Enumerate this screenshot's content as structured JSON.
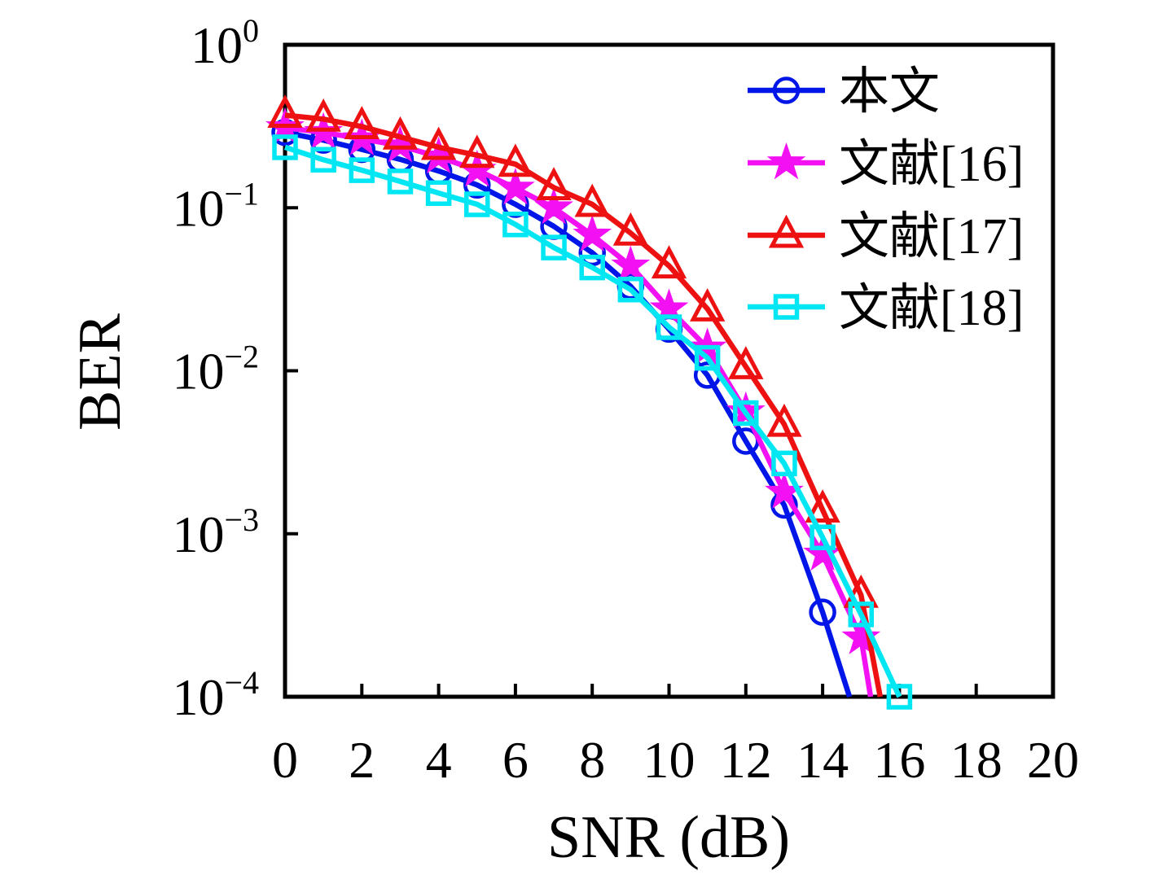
{
  "figure": {
    "background": "#ffffff"
  },
  "chart_data": {
    "type": "line",
    "title": "",
    "xlabel": "SNR (dB)",
    "ylabel": "BER",
    "grid": false,
    "x_axis": {
      "min": 0,
      "max": 20,
      "ticks": [
        0,
        2,
        4,
        6,
        8,
        10,
        12,
        14,
        16,
        18,
        20
      ]
    },
    "y_axis": {
      "scale": "log",
      "min": 0.0001,
      "max": 1,
      "tick_base": "10",
      "tick_exponents": [
        "0",
        "−1",
        "−2",
        "−3",
        "−4"
      ]
    },
    "legend": {
      "position": "top-right-inside",
      "border": false
    },
    "series": [
      {
        "id": "proposed",
        "name": "本文",
        "color": "#0016e8",
        "marker": "circle",
        "marker_filled": false,
        "x": [
          0,
          1,
          2,
          3,
          4,
          5,
          6,
          7,
          8,
          9,
          10,
          11,
          12,
          13,
          14,
          14.7
        ],
        "y": [
          0.29,
          0.26,
          0.228,
          0.198,
          0.168,
          0.138,
          0.105,
          0.077,
          0.053,
          0.033,
          0.018,
          0.0094,
          0.0037,
          0.0015,
          0.00033,
          0.0001
        ]
      },
      {
        "id": "ref16",
        "name": "文献[16]",
        "color": "#f311f3",
        "marker": "star",
        "marker_filled": true,
        "x": [
          0,
          1,
          2,
          3,
          4,
          5,
          6,
          7,
          8,
          9,
          10,
          11,
          12,
          13,
          14,
          15,
          15.25
        ],
        "y": [
          0.31,
          0.29,
          0.265,
          0.24,
          0.205,
          0.17,
          0.132,
          0.1,
          0.068,
          0.044,
          0.024,
          0.0138,
          0.0056,
          0.0018,
          0.00075,
          0.00023,
          0.0001
        ]
      },
      {
        "id": "ref17",
        "name": "文献[17]",
        "color": "#ee1111",
        "marker": "triangle",
        "marker_filled": false,
        "x": [
          0,
          1,
          2,
          3,
          4,
          5,
          6,
          7,
          8,
          9,
          10,
          11,
          12,
          13,
          14,
          15,
          15.5
        ],
        "y": [
          0.37,
          0.35,
          0.315,
          0.272,
          0.235,
          0.21,
          0.185,
          0.133,
          0.105,
          0.07,
          0.044,
          0.024,
          0.0106,
          0.0047,
          0.0014,
          0.00042,
          0.0001
        ]
      },
      {
        "id": "ref18",
        "name": "文献[18]",
        "color": "#00e6f2",
        "marker": "square",
        "marker_filled": false,
        "x": [
          0,
          1,
          2,
          3,
          4,
          5,
          6,
          7,
          8,
          9,
          10,
          11,
          12,
          13,
          14,
          15,
          16
        ],
        "y": [
          0.235,
          0.197,
          0.17,
          0.145,
          0.123,
          0.105,
          0.079,
          0.057,
          0.043,
          0.0315,
          0.0185,
          0.012,
          0.0055,
          0.0027,
          0.00095,
          0.00032,
          0.0001
        ]
      }
    ]
  }
}
